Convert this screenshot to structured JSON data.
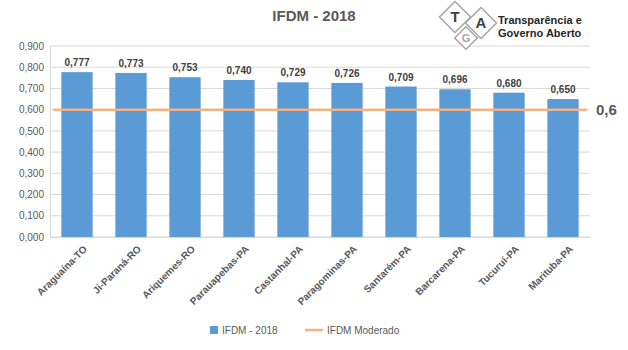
{
  "chart_data": {
    "type": "bar",
    "title": "IFDM - 2018",
    "categories": [
      "Araguaína-TO",
      "Ji-Paraná-RO",
      "Ariquemes-RO",
      "Parauapebas-PA",
      "Castanhal-PA",
      "Paragominas-PA",
      "Santarém-PA",
      "Barcarena-PA",
      "Tucuruí-PA",
      "Marituba-PA"
    ],
    "series": [
      {
        "name": "IFDM - 2018",
        "color": "#5b9bd5",
        "values": [
          0.777,
          0.773,
          0.753,
          0.74,
          0.729,
          0.726,
          0.709,
          0.696,
          0.68,
          0.65
        ],
        "value_labels": [
          "0,777",
          "0,773",
          "0,753",
          "0,740",
          "0,729",
          "0,726",
          "0,709",
          "0,696",
          "0,680",
          "0,650"
        ]
      }
    ],
    "reference_line": {
      "name": "IFDM Moderado",
      "value": 0.6,
      "label": "0,6",
      "color": "#f4b183"
    },
    "ylim": [
      0,
      0.9
    ],
    "yticks": [
      {
        "value": 0,
        "label": "0,000"
      },
      {
        "value": 0.1,
        "label": "0,100"
      },
      {
        "value": 0.2,
        "label": "0,200"
      },
      {
        "value": 0.3,
        "label": "0,300"
      },
      {
        "value": 0.4,
        "label": "0,400"
      },
      {
        "value": 0.5,
        "label": "0,500"
      },
      {
        "value": 0.6,
        "label": "0,600"
      },
      {
        "value": 0.7,
        "label": "0,700"
      },
      {
        "value": 0.8,
        "label": "0,800"
      },
      {
        "value": 0.9,
        "label": "0,900"
      }
    ],
    "grid": true,
    "data_labels": true,
    "legend": "bottom",
    "logo": {
      "letters": [
        "T",
        "G",
        "A"
      ],
      "lines": [
        "Transparência e",
        "Governo Aberto"
      ]
    }
  }
}
